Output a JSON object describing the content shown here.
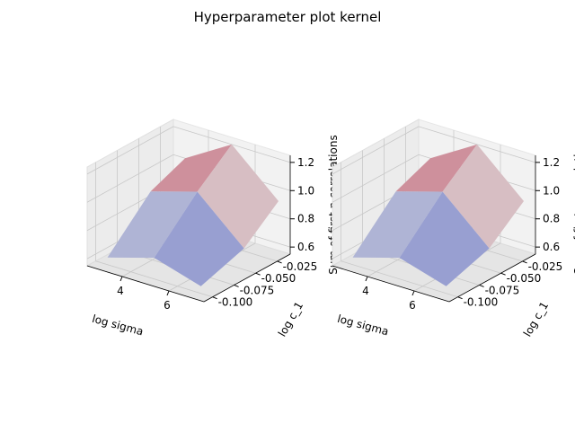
{
  "figure": {
    "title": "Hyperparameter plot kernel"
  },
  "chart_data": [
    {
      "type": "surface",
      "colormap": "coolwarm",
      "xlabel": "log sigma",
      "ylabel": "log c_1",
      "zlabel": "Sum of first n correlations",
      "x_ticks": [
        "4",
        "6"
      ],
      "y_ticks": [
        "-0.025",
        "-0.050",
        "-0.075",
        "-0.100"
      ],
      "z_ticks": [
        "0.6",
        "0.8",
        "1.0",
        "1.2"
      ],
      "xlim": [
        2.5,
        7.5
      ],
      "ylim": [
        -0.11,
        -0.01
      ],
      "zlim": [
        0.55,
        1.25
      ],
      "grid": true,
      "x": [
        3,
        5,
        7
      ],
      "y": [
        -0.1,
        -0.05,
        -0.01
      ],
      "z": [
        [
          0.6,
          0.9,
          1.0
        ],
        [
          0.7,
          1.0,
          1.2
        ],
        [
          0.6,
          0.7,
          0.9
        ]
      ]
    },
    {
      "type": "surface",
      "colormap": "coolwarm",
      "xlabel": "log sigma",
      "ylabel": "log c_1",
      "zlabel": "Sum of first n correlations",
      "x_ticks": [
        "4",
        "6"
      ],
      "y_ticks": [
        "-0.025",
        "-0.050",
        "-0.075",
        "-0.100"
      ],
      "z_ticks": [
        "0.6",
        "0.8",
        "1.0",
        "1.2"
      ],
      "xlim": [
        2.5,
        7.5
      ],
      "ylim": [
        -0.11,
        -0.01
      ],
      "zlim": [
        0.55,
        1.25
      ],
      "grid": true,
      "x": [
        3,
        5,
        7
      ],
      "y": [
        -0.1,
        -0.05,
        -0.01
      ],
      "z": [
        [
          0.6,
          0.9,
          1.0
        ],
        [
          0.7,
          1.0,
          1.2
        ],
        [
          0.6,
          0.7,
          0.9
        ]
      ]
    }
  ]
}
